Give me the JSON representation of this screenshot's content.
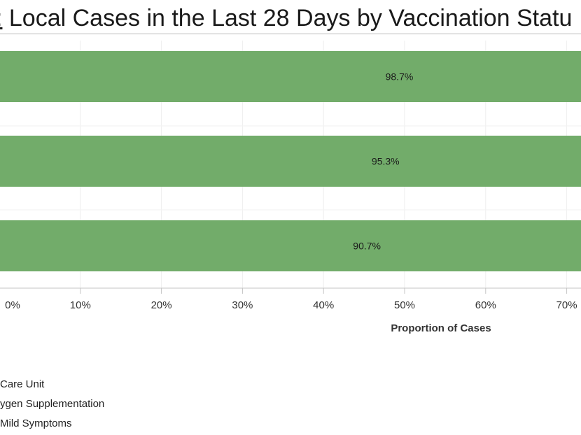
{
  "title": {
    "prefix": ":",
    "text": " Local Cases in the Last 28 Days by Vaccination Statu"
  },
  "chart_data": {
    "type": "bar",
    "orientation": "horizontal",
    "categories": [
      "",
      "",
      ""
    ],
    "values": [
      98.7,
      95.3,
      90.7
    ],
    "bar_labels": [
      "98.7%",
      "95.3%",
      "90.7%"
    ],
    "bar_color": "#72ac6a",
    "xlabel": "Proportion of Cases",
    "xticks": [
      "0%",
      "10%",
      "20%",
      "30%",
      "40%",
      "50%",
      "60%",
      "70%"
    ],
    "xlim": [
      0,
      100
    ],
    "grid": true
  },
  "legend": [
    "Care Unit",
    "ygen Supplementation",
    "Mild Symptoms"
  ]
}
